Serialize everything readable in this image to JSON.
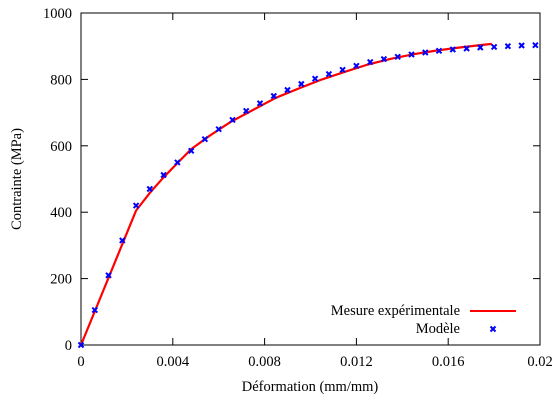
{
  "chart_data": {
    "type": "line",
    "xlabel": "Déformation (mm/mm)",
    "ylabel": "Contrainte (MPa)",
    "xlim": [
      0,
      0.02
    ],
    "ylim": [
      0,
      1000
    ],
    "x_ticks": [
      0,
      0.004,
      0.008,
      0.012,
      0.016,
      0.02
    ],
    "x_tick_labels": [
      "0",
      "0.004",
      "0.008",
      "0.012",
      "0.016",
      "0.02"
    ],
    "y_ticks": [
      0,
      200,
      400,
      600,
      800,
      1000
    ],
    "y_tick_labels": [
      "0",
      "200",
      "400",
      "600",
      "800",
      "1000"
    ],
    "grid": false,
    "legend_position": "bottom-right",
    "series": [
      {
        "name": "Mesure expérimentale",
        "style": "line",
        "color": "#ff0000",
        "x": [
          0,
          0.0024,
          0.003,
          0.0036,
          0.0042,
          0.0048,
          0.0056,
          0.0065,
          0.0075,
          0.0085,
          0.0095,
          0.0105,
          0.0115,
          0.0125,
          0.0135,
          0.0145,
          0.0155,
          0.0165,
          0.0175,
          0.0179
        ],
        "y": [
          0,
          405,
          458,
          505,
          548,
          590,
          630,
          671,
          708,
          745,
          773,
          800,
          823,
          845,
          862,
          876,
          887,
          896,
          904,
          907
        ]
      },
      {
        "name": "Modèle",
        "style": "markers",
        "color": "#0000ff",
        "x": [
          0,
          0.0006,
          0.0012,
          0.0018,
          0.0024,
          0.003,
          0.0036,
          0.0042,
          0.0048,
          0.0054,
          0.006,
          0.0066,
          0.0072,
          0.0078,
          0.0084,
          0.009,
          0.0096,
          0.0102,
          0.0108,
          0.0114,
          0.012,
          0.0126,
          0.0132,
          0.0138,
          0.0144,
          0.015,
          0.0156,
          0.0162,
          0.0168,
          0.0174,
          0.018,
          0.0186,
          0.0192,
          0.0198
        ],
        "y": [
          0,
          105,
          210,
          315,
          420,
          470,
          512,
          550,
          585,
          620,
          650,
          678,
          705,
          728,
          750,
          768,
          786,
          802,
          816,
          829,
          841,
          852,
          861,
          868,
          875,
          881,
          886,
          890,
          893,
          896,
          898,
          900,
          902,
          903
        ]
      }
    ]
  }
}
